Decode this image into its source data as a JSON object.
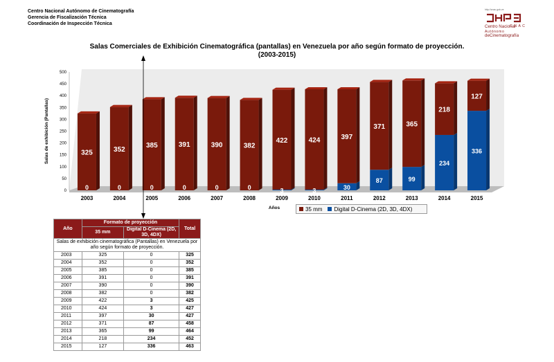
{
  "org": {
    "line1": "Centro Nacional Autónomo de Cinematografía",
    "line2": "Gerencia de Fiscalización Técnica",
    "line3": "Coordinación de Inspección Técnica"
  },
  "logo": {
    "url": "http://cnac.gob.ve",
    "acronym": "C N A C",
    "name1": "Centro Nacional",
    "name2": "Autónomo",
    "name3": "deCinematografía",
    "color": "#8b1a1a"
  },
  "chart_data": {
    "type": "bar",
    "stacked": true,
    "title_line1": "Salas Comerciales de Exhibición Cinematográfica (pantallas) en Venezuela por año según formato de proyección.",
    "title_line2": "(2003-2015)",
    "xlabel": "Años",
    "ylabel": "Salas de exhibición (Pantallas)",
    "ylim": [
      0,
      500
    ],
    "yticks": [
      0,
      50,
      100,
      150,
      200,
      250,
      300,
      350,
      400,
      450,
      500
    ],
    "categories": [
      "2003",
      "2004",
      "2005",
      "2006",
      "2007",
      "2008",
      "2009",
      "2010",
      "2011",
      "2012",
      "2013",
      "2014",
      "2015"
    ],
    "series": [
      {
        "name": "35 mm",
        "color": "#7a1a0c",
        "values": [
          325,
          352,
          385,
          391,
          390,
          382,
          422,
          424,
          397,
          371,
          365,
          218,
          127
        ]
      },
      {
        "name": "Digital D-Cinema (2D, 3D, 4DX)",
        "color": "#0a4fa0",
        "values": [
          0,
          0,
          0,
          0,
          0,
          0,
          3,
          3,
          30,
          87,
          99,
          234,
          336
        ]
      }
    ],
    "legend_position": "bottom-right",
    "grid": false
  },
  "table": {
    "caption": "Salas de exhibición cinematográfica (Pantallas) en Venezuela por año según formato de proyección.",
    "header_year": "Año",
    "header_format": "Formato de proyección",
    "header_35": "35 mm",
    "header_digital": "Digital D-Cinema (2D, 3D, 4DX)",
    "header_total": "Total",
    "rows": [
      [
        "2003",
        "325",
        "0",
        "325"
      ],
      [
        "2004",
        "352",
        "0",
        "352"
      ],
      [
        "2005",
        "385",
        "0",
        "385"
      ],
      [
        "2006",
        "391",
        "0",
        "391"
      ],
      [
        "2007",
        "390",
        "0",
        "390"
      ],
      [
        "2008",
        "382",
        "0",
        "382"
      ],
      [
        "2009",
        "422",
        "3",
        "425"
      ],
      [
        "2010",
        "424",
        "3",
        "427"
      ],
      [
        "2011",
        "397",
        "30",
        "427"
      ],
      [
        "2012",
        "371",
        "87",
        "458"
      ],
      [
        "2013",
        "365",
        "99",
        "464"
      ],
      [
        "2014",
        "218",
        "234",
        "452"
      ],
      [
        "2015",
        "127",
        "336",
        "463"
      ]
    ]
  }
}
